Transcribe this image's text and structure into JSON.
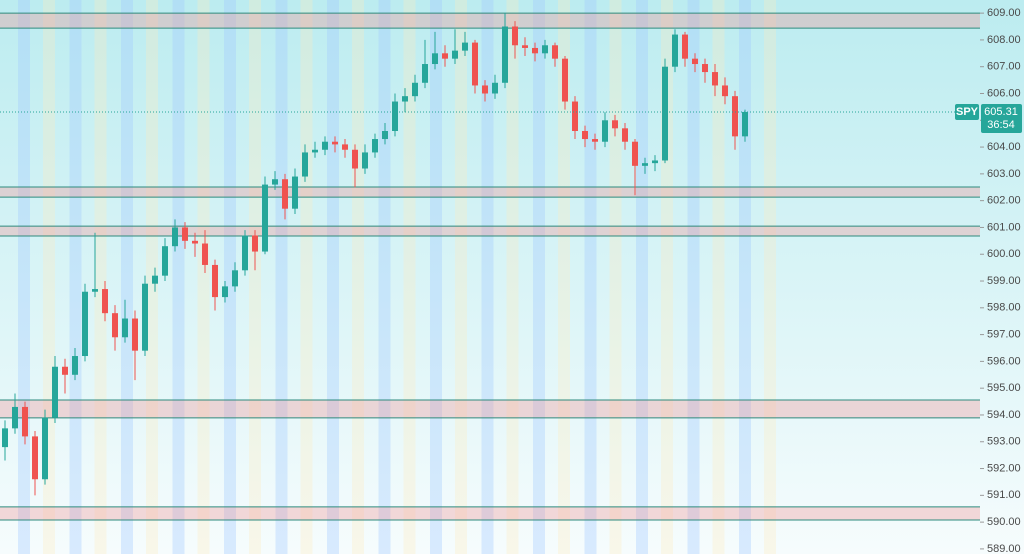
{
  "chart_data": {
    "type": "candlestick",
    "open": [
      592.8,
      593.5,
      594.3,
      593.2,
      591.6,
      593.9,
      595.8,
      595.5,
      596.2,
      598.6,
      598.7,
      597.8,
      596.9,
      597.6,
      596.4,
      598.9,
      599.2,
      600.3,
      601.0,
      600.5,
      600.4,
      599.6,
      598.4,
      598.8,
      599.4,
      600.7,
      600.1,
      602.6,
      602.8,
      601.7,
      602.9,
      603.8,
      603.9,
      604.2,
      604.1,
      603.9,
      603.2,
      603.8,
      604.3,
      604.6,
      605.7,
      605.9,
      606.4,
      607.1,
      607.5,
      607.3,
      607.6,
      607.9,
      606.3,
      606.0,
      606.4,
      608.5,
      607.8,
      607.7,
      607.5,
      607.8,
      607.3,
      605.7,
      604.6,
      604.3,
      604.2,
      605.0,
      604.7,
      604.2,
      603.3,
      603.4,
      603.5,
      607.0,
      608.2,
      607.3,
      607.1,
      606.8,
      606.3,
      605.9,
      604.4
    ],
    "high": [
      593.8,
      594.8,
      594.5,
      593.4,
      594.2,
      596.2,
      596.1,
      596.5,
      598.9,
      600.8,
      599.0,
      598.1,
      598.3,
      597.9,
      599.2,
      599.5,
      600.6,
      601.3,
      601.2,
      600.8,
      600.9,
      599.8,
      599.0,
      599.7,
      600.9,
      600.9,
      602.9,
      603.1,
      603.0,
      603.2,
      604.1,
      604.2,
      604.4,
      604.4,
      604.3,
      604.1,
      604.1,
      604.5,
      604.9,
      606.0,
      606.2,
      606.7,
      608.0,
      608.3,
      607.8,
      608.4,
      608.3,
      608.0,
      606.5,
      606.7,
      609.0,
      608.7,
      608.1,
      607.9,
      608.0,
      607.9,
      607.4,
      605.9,
      604.8,
      604.5,
      605.3,
      605.2,
      604.9,
      604.3,
      603.6,
      603.7,
      607.3,
      608.4,
      608.3,
      607.5,
      607.3,
      607.1,
      606.6,
      606.1,
      605.4
    ],
    "low": [
      592.3,
      593.3,
      592.9,
      591.0,
      591.4,
      593.7,
      594.8,
      595.3,
      596.0,
      598.4,
      597.5,
      596.4,
      596.7,
      595.3,
      596.2,
      598.6,
      599.0,
      600.1,
      600.2,
      599.9,
      599.3,
      597.9,
      598.2,
      598.6,
      599.2,
      599.4,
      600.0,
      602.4,
      601.3,
      601.5,
      602.7,
      603.6,
      603.7,
      603.8,
      603.6,
      602.5,
      603.0,
      603.6,
      604.1,
      604.4,
      605.3,
      605.7,
      606.2,
      606.9,
      607.0,
      607.1,
      607.4,
      606.0,
      605.7,
      605.8,
      606.2,
      607.3,
      607.4,
      607.2,
      607.3,
      607.0,
      605.4,
      604.3,
      604.0,
      603.9,
      604.0,
      604.4,
      603.9,
      602.2,
      603.0,
      603.1,
      603.4,
      606.8,
      607.0,
      606.8,
      606.4,
      605.9,
      605.6,
      603.9,
      604.2
    ],
    "close": [
      593.5,
      594.3,
      593.2,
      591.6,
      593.9,
      595.8,
      595.5,
      596.2,
      598.6,
      598.7,
      597.8,
      596.9,
      597.6,
      596.4,
      598.9,
      599.2,
      600.3,
      601.0,
      600.5,
      600.4,
      599.6,
      598.4,
      598.8,
      599.4,
      600.7,
      600.1,
      602.6,
      602.8,
      601.7,
      602.9,
      603.8,
      603.9,
      604.2,
      604.1,
      603.9,
      603.2,
      603.8,
      604.3,
      604.6,
      605.7,
      605.9,
      606.4,
      607.1,
      607.5,
      607.3,
      607.6,
      607.9,
      606.3,
      606.0,
      606.4,
      608.5,
      607.8,
      607.7,
      607.5,
      607.8,
      607.3,
      605.7,
      604.6,
      604.3,
      604.2,
      605.0,
      604.7,
      604.2,
      603.3,
      603.4,
      603.5,
      607.0,
      608.2,
      607.3,
      607.1,
      606.8,
      606.3,
      605.9,
      604.4,
      605.31
    ],
    "up_color": "#26a69a",
    "down_color": "#ef5350",
    "zones": [
      {
        "low": 608.44,
        "high": 609.0
      },
      {
        "low": 602.13,
        "high": 602.51
      },
      {
        "low": 600.68,
        "high": 601.05
      },
      {
        "low": 593.89,
        "high": 594.56
      },
      {
        "low": 590.08,
        "high": 590.57
      }
    ],
    "last_price": {
      "symbol": "SPY",
      "value": 605.31,
      "countdown": "36:54"
    },
    "ylim": [
      588.81,
      609.49
    ],
    "yticks": [
      {
        "value": 589,
        "label": "589.00"
      },
      {
        "value": 590,
        "label": "590.00"
      },
      {
        "value": 591,
        "label": "591.00"
      },
      {
        "value": 592,
        "label": "592.00"
      },
      {
        "value": 593,
        "label": "593.00"
      },
      {
        "value": 594,
        "label": "594.00"
      },
      {
        "value": 595,
        "label": "595.00"
      },
      {
        "value": 596,
        "label": "596.00"
      },
      {
        "value": 597,
        "label": "597.00"
      },
      {
        "value": 598,
        "label": "598.00"
      },
      {
        "value": 599,
        "label": "599.00"
      },
      {
        "value": 600,
        "label": "600.00"
      },
      {
        "value": 601,
        "label": "601.00"
      },
      {
        "value": 602,
        "label": "602.00"
      },
      {
        "value": 603,
        "label": "603.00"
      },
      {
        "value": 604,
        "label": "604.00"
      },
      {
        "value": 605,
        "label": "605.00"
      },
      {
        "value": 606,
        "label": "606.00"
      },
      {
        "value": 607,
        "label": "607.00"
      },
      {
        "value": 608,
        "label": "608.00"
      },
      {
        "value": 609,
        "label": "609.00"
      }
    ]
  }
}
